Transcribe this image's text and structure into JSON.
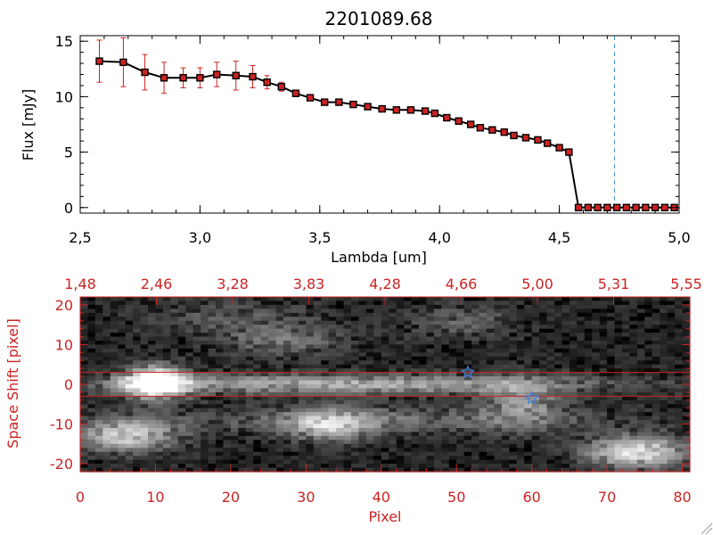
{
  "figure": {
    "title": "2201089.68",
    "colors": {
      "axis_top": "#000000",
      "axis_bottom": "#cc2222",
      "errorbar": "#cc2222",
      "marker_fill": "#cc2222",
      "line": "#000000",
      "vline": "#3b8fd9",
      "star": "#3b7fd9",
      "aperture": "#cc2222"
    }
  },
  "chart_data": [
    {
      "type": "line",
      "title": "2201089.68",
      "xlabel": "Lambda [um]",
      "ylabel": "Flux [mJy]",
      "xlim": [
        2.5,
        5.0
      ],
      "ylim": [
        -0.5,
        15.5
      ],
      "xticks": [
        "2.5",
        "3.0",
        "3.5",
        "4.0",
        "4.5",
        "5.0"
      ],
      "yticks": [
        "0",
        "5",
        "10",
        "15"
      ],
      "grid": false,
      "vertical_marker_x": 4.73,
      "series": [
        {
          "x": [
            2.58,
            2.68,
            2.77,
            2.85,
            2.93,
            3.0,
            3.07,
            3.15,
            3.22,
            3.28,
            3.34,
            3.4,
            3.46,
            3.52,
            3.58,
            3.64,
            3.7,
            3.76,
            3.82,
            3.88,
            3.94,
            3.98,
            4.03,
            4.08,
            4.13,
            4.17,
            4.22,
            4.27,
            4.31,
            4.36,
            4.41,
            4.45,
            4.5,
            4.54,
            4.58,
            4.62,
            4.66,
            4.7,
            4.74,
            4.78,
            4.82,
            4.86,
            4.9,
            4.94,
            4.98
          ],
          "y": [
            13.2,
            13.1,
            12.2,
            11.7,
            11.7,
            11.7,
            12.0,
            11.9,
            11.8,
            11.3,
            10.9,
            10.3,
            9.9,
            9.5,
            9.5,
            9.3,
            9.1,
            8.9,
            8.8,
            8.8,
            8.7,
            8.5,
            8.1,
            7.8,
            7.5,
            7.2,
            7.0,
            6.8,
            6.5,
            6.3,
            6.1,
            5.8,
            5.4,
            5.0,
            0.0,
            0.0,
            0.0,
            0.0,
            0.0,
            0.0,
            0.0,
            0.0,
            0.0,
            0.0,
            0.0
          ],
          "yerr": [
            1.9,
            2.2,
            1.6,
            1.4,
            0.9,
            0.9,
            1.1,
            1.3,
            1.0,
            0.6,
            0.4,
            0.3,
            0.2,
            0.2,
            0.2,
            0.2,
            0.2,
            0.2,
            0.2,
            0.2,
            0.2,
            0.2,
            0.2,
            0.2,
            0.2,
            0.2,
            0.2,
            0.2,
            0.2,
            0.2,
            0.2,
            0.2,
            0.2,
            0.2,
            0.2,
            0.2,
            0.2,
            0.2,
            0.2,
            0.2,
            0.2,
            0.2,
            0.2,
            0.2,
            0.2
          ]
        }
      ]
    },
    {
      "type": "heatmap",
      "xlabel": "Pixel",
      "ylabel": "Space Shift [pixel]",
      "xlim": [
        0,
        81
      ],
      "ylim": [
        -22,
        22
      ],
      "xticks": [
        "0",
        "10",
        "20",
        "30",
        "40",
        "50",
        "60",
        "70",
        "80"
      ],
      "yticks": [
        "-20",
        "-10",
        "0",
        "10",
        "20"
      ],
      "top_axis_ticks": [
        "1.48",
        "2.46",
        "3.28",
        "3.83",
        "4.28",
        "4.66",
        "5.00",
        "5.31",
        "5.55"
      ],
      "aperture_lines_y": [
        3,
        -3
      ],
      "stars": [
        {
          "x": 51.5,
          "y": 3
        },
        {
          "x": 60,
          "y": -3.5
        }
      ],
      "sources": [
        {
          "x": 10,
          "y": 0.5,
          "sx": 3,
          "sy": 3,
          "amp": 0.95
        },
        {
          "x": 35,
          "y": 0,
          "sx": 25,
          "sy": 1.8,
          "amp": 0.55
        },
        {
          "x": 6,
          "y": -13,
          "sx": 5,
          "sy": 3,
          "amp": 0.65
        },
        {
          "x": 33,
          "y": -10.5,
          "sx": 4,
          "sy": 3,
          "amp": 0.5
        },
        {
          "x": 40,
          "y": -9,
          "sx": 20,
          "sy": 2.5,
          "amp": 0.3
        },
        {
          "x": 74,
          "y": -17,
          "sx": 5,
          "sy": 3,
          "amp": 0.75
        },
        {
          "x": 59,
          "y": -5,
          "sx": 4,
          "sy": 4,
          "amp": 0.4
        },
        {
          "x": 27,
          "y": 11,
          "sx": 6,
          "sy": 3,
          "amp": 0.3
        },
        {
          "x": 51,
          "y": 16,
          "sx": 5,
          "sy": 3,
          "amp": 0.25
        },
        {
          "x": 20,
          "y": 17,
          "sx": 8,
          "sy": 3,
          "amp": 0.2
        }
      ]
    }
  ]
}
